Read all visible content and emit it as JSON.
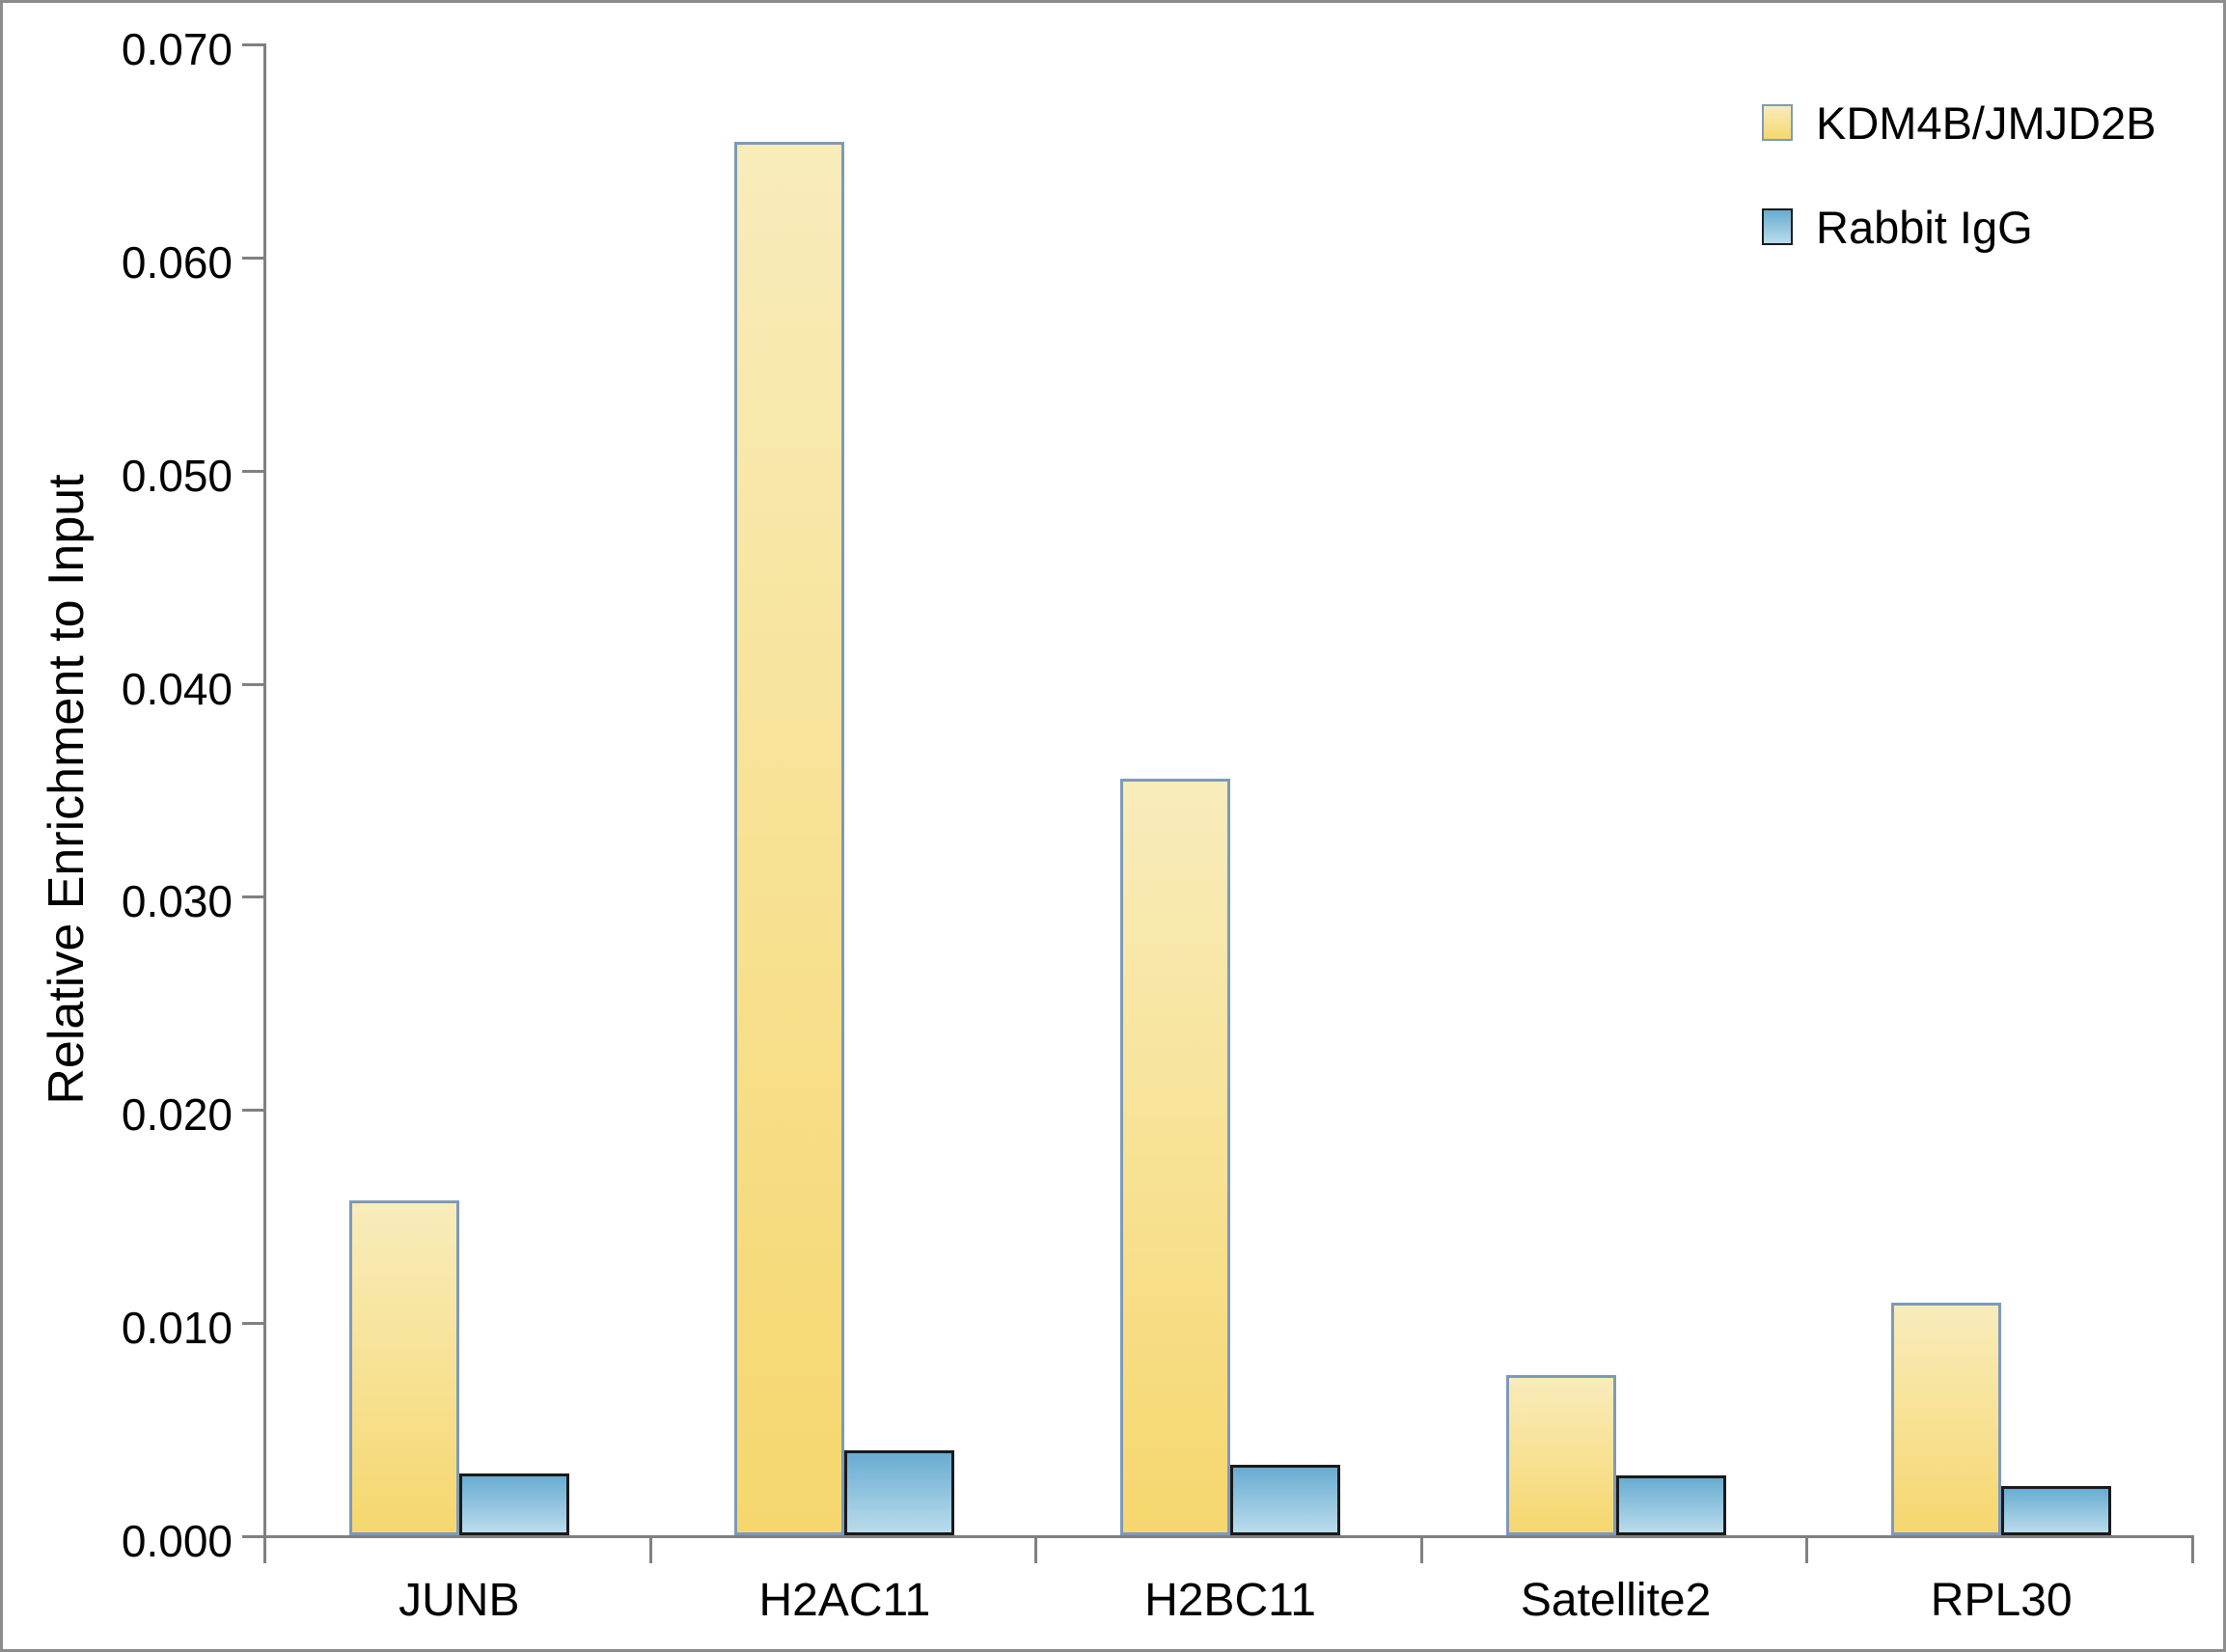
{
  "chart_data": {
    "type": "bar",
    "title": "",
    "xlabel": "",
    "ylabel": "Relative Enrichment to Input",
    "categories": [
      "JUNB",
      "H2AC11",
      "H2BC11",
      "Satellite2",
      "RPL30"
    ],
    "series": [
      {
        "name": "KDM4B/JMJD2B",
        "values": [
          0.0157,
          0.0654,
          0.0355,
          0.0075,
          0.0109
        ],
        "fill_top": "#f8ecbb",
        "fill_bottom": "#f6d76e",
        "border": "#7d9ab8"
      },
      {
        "name": "Rabbit IgG",
        "values": [
          0.0029,
          0.004,
          0.0033,
          0.0028,
          0.0023
        ],
        "fill_top": "#68acd1",
        "fill_bottom": "#badcec",
        "border": "#1a1a1a"
      }
    ],
    "ylim": [
      0,
      0.07
    ],
    "ytick_step": 0.01,
    "ytick_labels": [
      "0.000",
      "0.010",
      "0.020",
      "0.030",
      "0.040",
      "0.050",
      "0.060",
      "0.070"
    ],
    "grid": "off",
    "legend_position": "top-right",
    "axis_color": "#808080",
    "text_color": "#000000"
  }
}
